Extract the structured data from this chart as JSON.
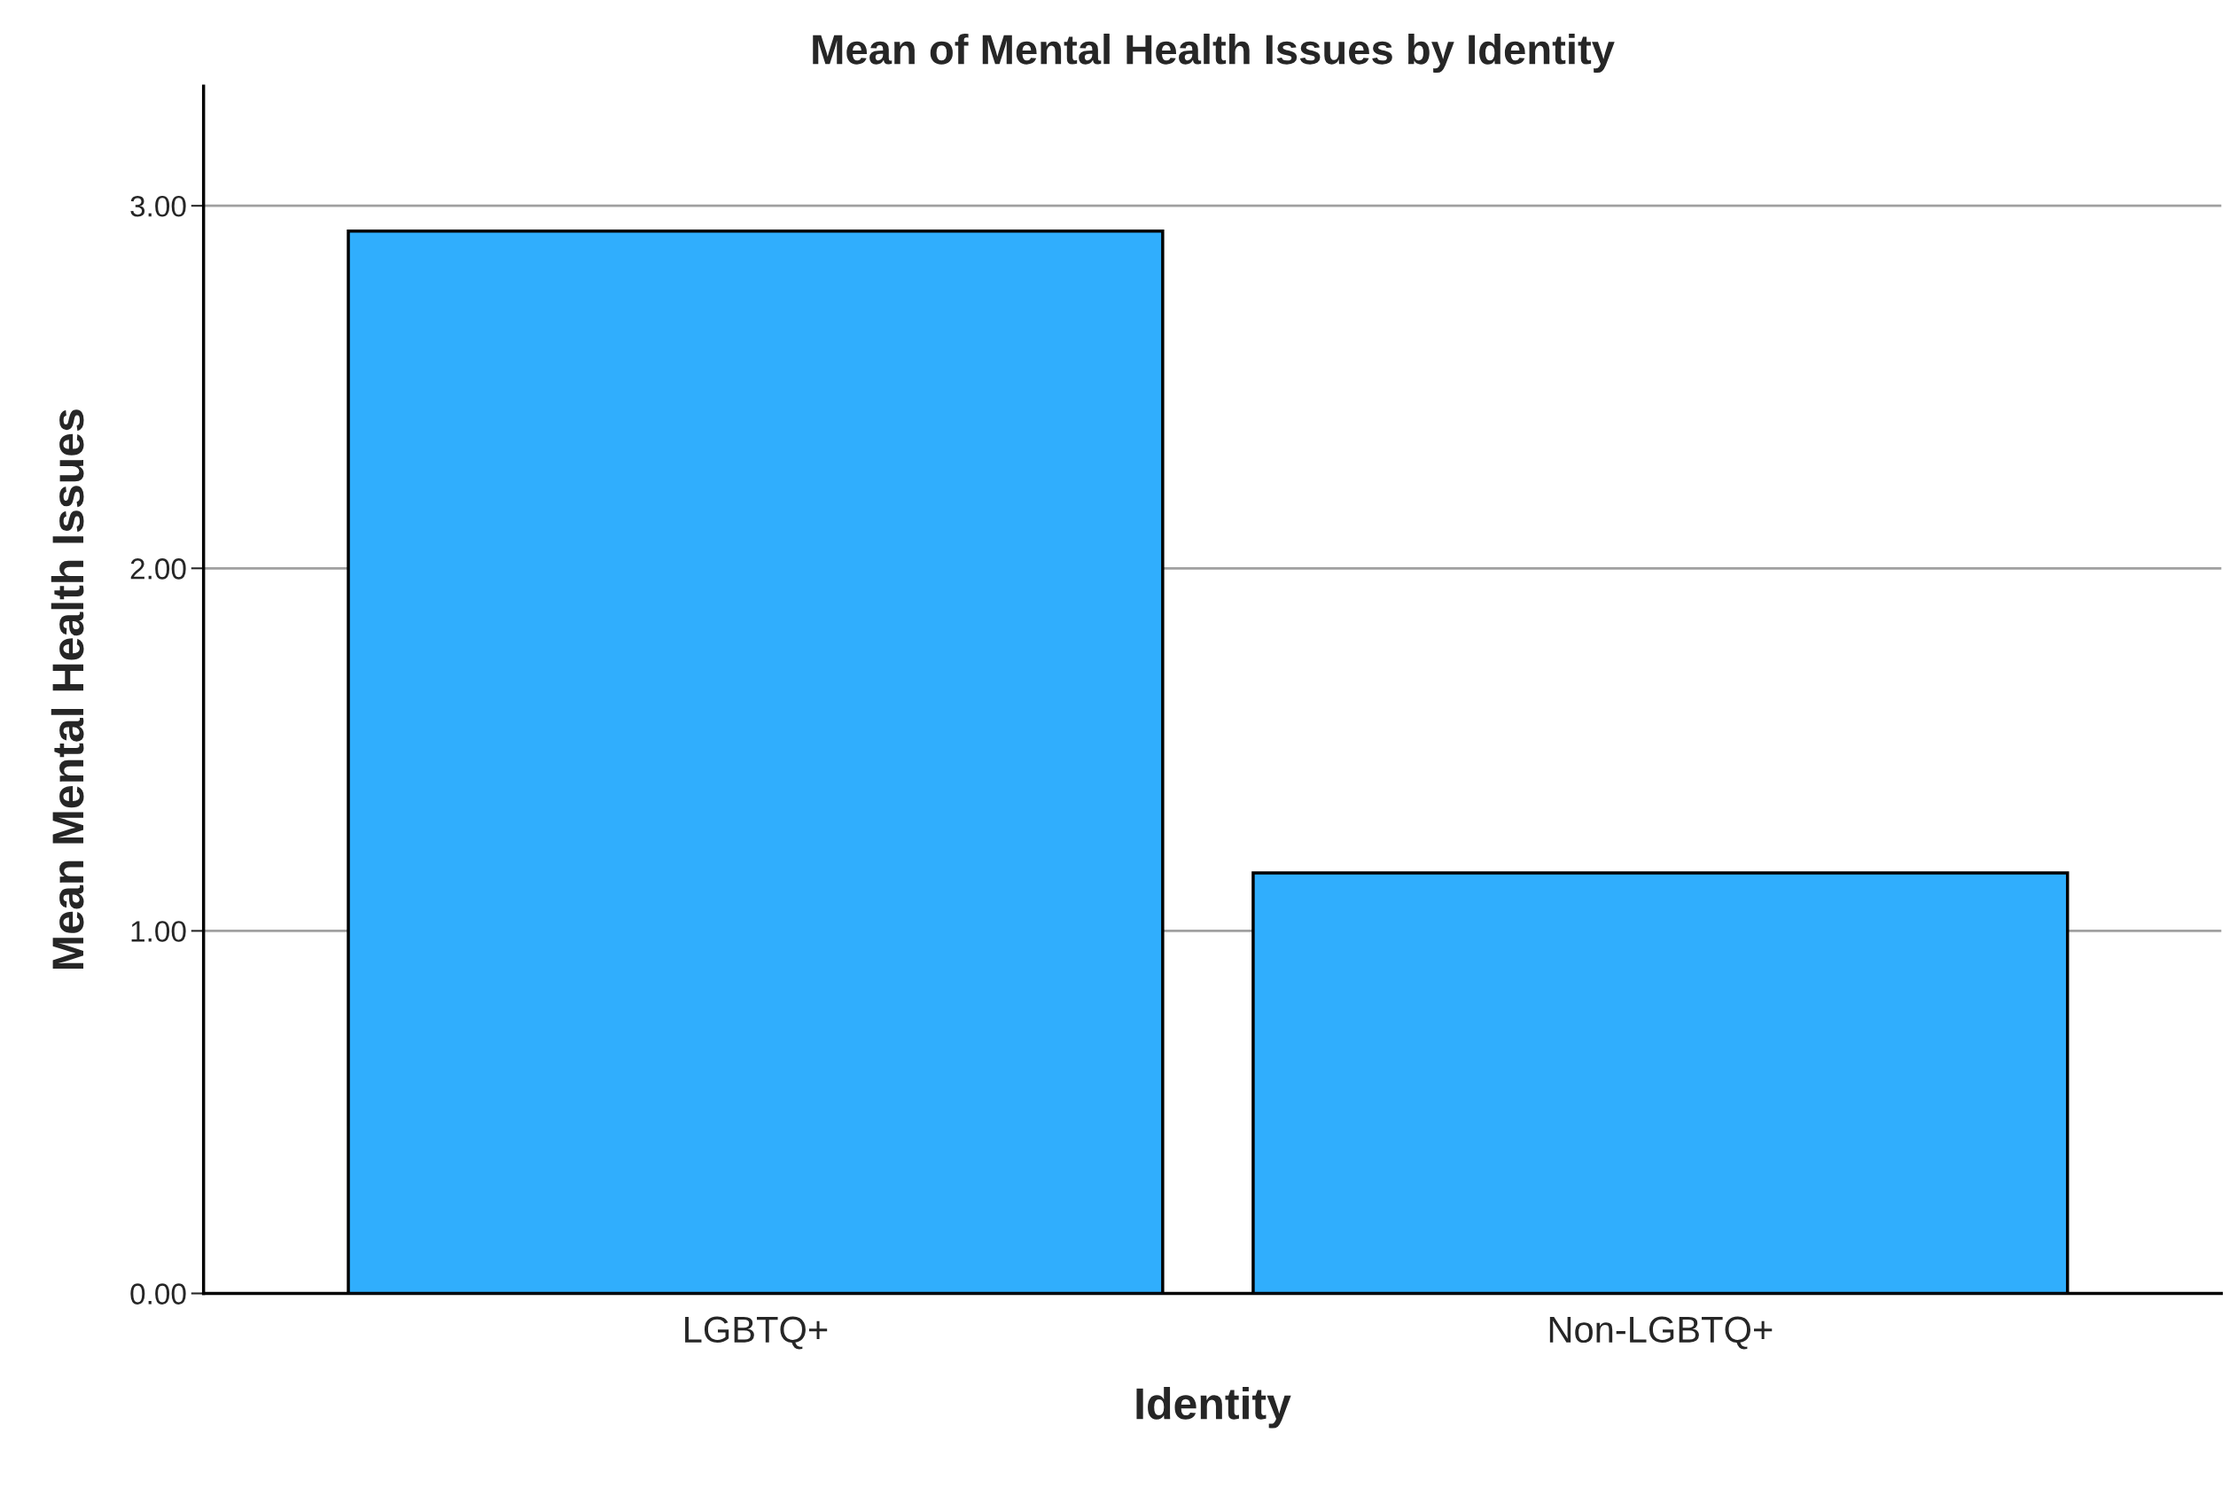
{
  "chart_data": {
    "type": "bar",
    "title": "Mean of Mental Health Issues by Identity",
    "xlabel": "Identity",
    "ylabel": "Mean Mental Health Issues",
    "categories": [
      "LGBTQ+",
      "Non-LGBTQ+"
    ],
    "values": [
      2.93,
      1.16
    ],
    "color": "#30aefd",
    "ylim": [
      0,
      3.33
    ],
    "yticks": [
      {
        "value": 0,
        "label": "0.00"
      },
      {
        "value": 1,
        "label": "1.00"
      },
      {
        "value": 2,
        "label": "2.00"
      },
      {
        "value": 3,
        "label": "3.00"
      }
    ],
    "grid": "y",
    "legend": false
  }
}
